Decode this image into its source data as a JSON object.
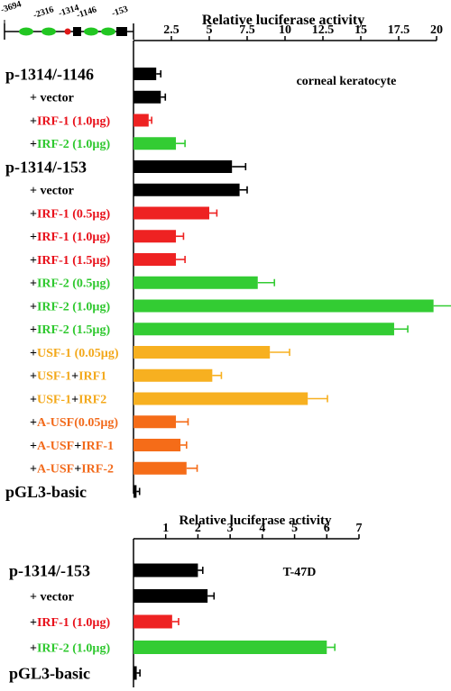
{
  "chart_data": [
    {
      "type": "bar",
      "orientation": "horizontal",
      "xlabel": "Relative luciferase activity",
      "xlim": [
        0,
        20
      ],
      "xticks": [
        "2.5",
        "5",
        "7.5",
        "10",
        "12.5",
        "15",
        "17.5",
        "20"
      ],
      "annotation": "corneal keratocyte",
      "rows": [
        {
          "segments": [
            {
              "text": "p-1314/-1146",
              "color": "#000000"
            }
          ],
          "kind": "header",
          "value": 1.5,
          "error": 0.3,
          "color": "#000000"
        },
        {
          "segments": [
            {
              "text": "+ vector",
              "color": "#000000"
            }
          ],
          "kind": "sub",
          "value": 1.8,
          "error": 0.3,
          "color": "#000000"
        },
        {
          "segments": [
            {
              "text": "+",
              "color": "#000000"
            },
            {
              "text": "IRF-1 (1.0µg)",
              "color": "#e8101a"
            }
          ],
          "kind": "sub",
          "value": 1.0,
          "error": 0.2,
          "color": "#ee2222"
        },
        {
          "segments": [
            {
              "text": "+",
              "color": "#000000"
            },
            {
              "text": "IRF-2 (1.0µg)",
              "color": "#2ec82e"
            }
          ],
          "kind": "sub",
          "value": 2.8,
          "error": 0.6,
          "color": "#33cc33"
        },
        {
          "segments": [
            {
              "text": "p-1314/-153",
              "color": "#000000"
            }
          ],
          "kind": "header",
          "value": 6.5,
          "error": 0.9,
          "color": "#000000"
        },
        {
          "segments": [
            {
              "text": "+ vector",
              "color": "#000000"
            }
          ],
          "kind": "sub",
          "value": 7.0,
          "error": 0.5,
          "color": "#000000"
        },
        {
          "segments": [
            {
              "text": "+",
              "color": "#000000"
            },
            {
              "text": "IRF-1 (0.5µg)",
              "color": "#e8101a"
            }
          ],
          "kind": "sub",
          "value": 5.0,
          "error": 0.5,
          "color": "#ee2222"
        },
        {
          "segments": [
            {
              "text": "+",
              "color": "#000000"
            },
            {
              "text": "IRF-1 (1.0µg)",
              "color": "#e8101a"
            }
          ],
          "kind": "sub",
          "value": 2.8,
          "error": 0.5,
          "color": "#ee2222"
        },
        {
          "segments": [
            {
              "text": "+",
              "color": "#000000"
            },
            {
              "text": "IRF-1 (1.5µg)",
              "color": "#e8101a"
            }
          ],
          "kind": "sub",
          "value": 2.8,
          "error": 0.6,
          "color": "#ee2222"
        },
        {
          "segments": [
            {
              "text": "+",
              "color": "#000000"
            },
            {
              "text": "IRF-2 (0.5µg)",
              "color": "#2ec82e"
            }
          ],
          "kind": "sub",
          "value": 8.2,
          "error": 1.1,
          "color": "#33cc33"
        },
        {
          "segments": [
            {
              "text": "+",
              "color": "#000000"
            },
            {
              "text": "IRF-2 (1.0µg)",
              "color": "#2ec82e"
            }
          ],
          "kind": "sub",
          "value": 19.8,
          "error": 1.3,
          "color": "#33cc33"
        },
        {
          "segments": [
            {
              "text": "+",
              "color": "#000000"
            },
            {
              "text": "IRF-2 (1.5µg)",
              "color": "#2ec82e"
            }
          ],
          "kind": "sub",
          "value": 17.2,
          "error": 0.9,
          "color": "#33cc33"
        },
        {
          "segments": [
            {
              "text": "+",
              "color": "#000000"
            },
            {
              "text": "USF-1 (0.05µg)",
              "color": "#f3a81a"
            }
          ],
          "kind": "sub",
          "value": 9.0,
          "error": 1.3,
          "color": "#f7b020"
        },
        {
          "segments": [
            {
              "text": "+",
              "color": "#000000"
            },
            {
              "text": "USF-1",
              "color": "#f3a81a"
            },
            {
              "text": "+",
              "color": "#000000"
            },
            {
              "text": "IRF1",
              "color": "#f3a81a"
            }
          ],
          "kind": "sub",
          "value": 5.2,
          "error": 0.6,
          "color": "#f7b020"
        },
        {
          "segments": [
            {
              "text": "+",
              "color": "#000000"
            },
            {
              "text": "USF-1",
              "color": "#f3a81a"
            },
            {
              "text": "+",
              "color": "#000000"
            },
            {
              "text": "IRF2",
              "color": "#f3a81a"
            }
          ],
          "kind": "sub",
          "value": 11.5,
          "error": 1.3,
          "color": "#f7b020"
        },
        {
          "segments": [
            {
              "text": "+",
              "color": "#000000"
            },
            {
              "text": "A-USF(0.05µg)",
              "color": "#f26a1b"
            }
          ],
          "kind": "sub",
          "value": 2.8,
          "error": 0.8,
          "color": "#f56c18"
        },
        {
          "segments": [
            {
              "text": "+",
              "color": "#000000"
            },
            {
              "text": "A-USF",
              "color": "#f26a1b"
            },
            {
              "text": "+",
              "color": "#000000"
            },
            {
              "text": "IRF-1",
              "color": "#f26a1b"
            }
          ],
          "kind": "sub",
          "value": 3.1,
          "error": 0.4,
          "color": "#f56c18"
        },
        {
          "segments": [
            {
              "text": "+",
              "color": "#000000"
            },
            {
              "text": "A-USF",
              "color": "#f26a1b"
            },
            {
              "text": "+",
              "color": "#000000"
            },
            {
              "text": "IRF-2",
              "color": "#f26a1b"
            }
          ],
          "kind": "sub",
          "value": 3.5,
          "error": 0.7,
          "color": "#f56c18"
        },
        {
          "segments": [
            {
              "text": "pGL3-basic",
              "color": "#000000"
            }
          ],
          "kind": "header",
          "value": 0.2,
          "error": 0.2,
          "color": "#000000"
        }
      ]
    },
    {
      "type": "bar",
      "orientation": "horizontal",
      "xlabel": "Relative luciferase activity",
      "xlim": [
        0,
        7
      ],
      "xticks": [
        "1",
        "2",
        "3",
        "4",
        "5",
        "6",
        "7"
      ],
      "annotation": "T-47D",
      "rows": [
        {
          "segments": [
            {
              "text": "p-1314/-153",
              "color": "#000000"
            }
          ],
          "kind": "header",
          "value": 2.0,
          "error": 0.15,
          "color": "#000000"
        },
        {
          "segments": [
            {
              "text": "+ vector",
              "color": "#000000"
            }
          ],
          "kind": "sub",
          "value": 2.3,
          "error": 0.2,
          "color": "#000000"
        },
        {
          "segments": [
            {
              "text": "+",
              "color": "#000000"
            },
            {
              "text": "IRF-1 (1.0µg)",
              "color": "#e8101a"
            }
          ],
          "kind": "sub",
          "value": 1.2,
          "error": 0.2,
          "color": "#ee2222"
        },
        {
          "segments": [
            {
              "text": "+",
              "color": "#000000"
            },
            {
              "text": "IRF-2 (1.0µg)",
              "color": "#2ec82e"
            }
          ],
          "kind": "sub",
          "value": 6.0,
          "error": 0.25,
          "color": "#33cc33"
        },
        {
          "segments": [
            {
              "text": "pGL3-basic",
              "color": "#000000"
            }
          ],
          "kind": "header",
          "value": 0.1,
          "error": 0.1,
          "color": "#000000"
        }
      ]
    }
  ],
  "gene_map": {
    "labels": [
      "-3694",
      "-2316",
      "-1314",
      "-1146",
      "-153"
    ]
  }
}
